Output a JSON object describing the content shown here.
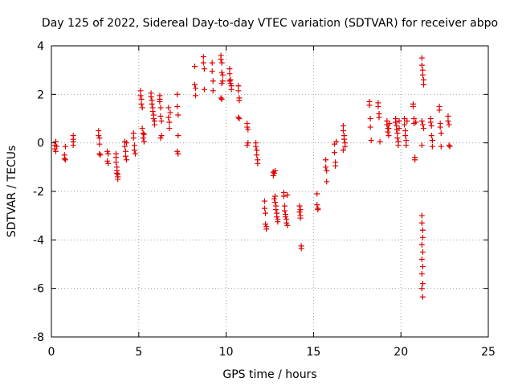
{
  "chart_data": {
    "type": "scatter",
    "title": "Day 125 of 2022, Sidereal Day-to-day VTEC variation (SDTVAR) for receiver abpo",
    "xlabel": "GPS time / hours",
    "ylabel": "SDTVAR / TECUs",
    "xlim": [
      0,
      25
    ],
    "ylim": [
      -8,
      4
    ],
    "xticks": [
      0,
      5,
      10,
      15,
      20,
      25
    ],
    "yticks": [
      -8,
      -6,
      -4,
      -2,
      0,
      2,
      4
    ],
    "xtick_labels": [
      "0",
      "5",
      "10",
      "15",
      "20",
      "25"
    ],
    "ytick_labels": [
      "-8",
      "-6",
      "-4",
      "-2",
      "0",
      "2",
      "4"
    ],
    "grid": true,
    "marker": "+",
    "color": "#e00000",
    "series": [
      {
        "name": "SDTVAR",
        "points": [
          [
            0.2,
            -0.1
          ],
          [
            0.2,
            -0.25
          ],
          [
            0.25,
            0.05
          ],
          [
            0.25,
            -0.35
          ],
          [
            0.3,
            -0.15
          ],
          [
            0.75,
            -0.5
          ],
          [
            0.75,
            -0.65
          ],
          [
            0.8,
            -0.7
          ],
          [
            0.8,
            -0.15
          ],
          [
            1.25,
            0.3
          ],
          [
            1.25,
            0.15
          ],
          [
            1.25,
            0.05
          ],
          [
            1.25,
            -0.1
          ],
          [
            2.7,
            0.5
          ],
          [
            2.7,
            0.3
          ],
          [
            2.75,
            0.2
          ],
          [
            2.75,
            -0.05
          ],
          [
            2.75,
            -0.45
          ],
          [
            2.8,
            -0.5
          ],
          [
            3.2,
            -0.35
          ],
          [
            3.2,
            -0.75
          ],
          [
            3.25,
            -0.85
          ],
          [
            3.25,
            -0.45
          ],
          [
            3.7,
            -0.45
          ],
          [
            3.7,
            -0.6
          ],
          [
            3.7,
            -0.8
          ],
          [
            3.75,
            -1.0
          ],
          [
            3.75,
            -1.15
          ],
          [
            3.75,
            -1.25
          ],
          [
            3.8,
            -1.3
          ],
          [
            3.8,
            -1.4
          ],
          [
            3.8,
            -1.5
          ],
          [
            4.2,
            0.05
          ],
          [
            4.2,
            -0.15
          ],
          [
            4.25,
            -0.35
          ],
          [
            4.25,
            -0.55
          ],
          [
            4.3,
            -0.7
          ],
          [
            4.3,
            0.0
          ],
          [
            4.7,
            0.4
          ],
          [
            4.7,
            0.2
          ],
          [
            4.75,
            -0.1
          ],
          [
            4.75,
            -0.3
          ],
          [
            4.8,
            -0.45
          ],
          [
            5.1,
            2.15
          ],
          [
            5.1,
            1.95
          ],
          [
            5.15,
            1.8
          ],
          [
            5.15,
            1.6
          ],
          [
            5.2,
            1.45
          ],
          [
            5.2,
            0.6
          ],
          [
            5.25,
            0.4
          ],
          [
            5.25,
            0.2
          ],
          [
            5.3,
            0.05
          ],
          [
            5.3,
            0.35
          ],
          [
            5.7,
            2.05
          ],
          [
            5.7,
            1.9
          ],
          [
            5.75,
            1.75
          ],
          [
            5.75,
            1.6
          ],
          [
            5.8,
            1.45
          ],
          [
            5.8,
            1.3
          ],
          [
            5.85,
            1.15
          ],
          [
            5.85,
            1.0
          ],
          [
            5.9,
            0.9
          ],
          [
            5.9,
            0.75
          ],
          [
            6.2,
            1.95
          ],
          [
            6.2,
            1.7
          ],
          [
            6.25,
            1.45
          ],
          [
            6.25,
            1.1
          ],
          [
            6.3,
            0.9
          ],
          [
            6.3,
            0.3
          ],
          [
            6.25,
            0.2
          ],
          [
            6.2,
            1.8
          ],
          [
            6.7,
            1.45
          ],
          [
            6.7,
            1.05
          ],
          [
            6.75,
            0.85
          ],
          [
            6.75,
            0.6
          ],
          [
            6.8,
            1.25
          ],
          [
            7.2,
            2.0
          ],
          [
            7.2,
            1.5
          ],
          [
            7.25,
            1.15
          ],
          [
            7.25,
            0.3
          ],
          [
            7.2,
            -0.35
          ],
          [
            7.25,
            -0.45
          ],
          [
            8.2,
            3.15
          ],
          [
            8.2,
            2.4
          ],
          [
            8.25,
            2.25
          ],
          [
            8.25,
            1.95
          ],
          [
            8.7,
            3.55
          ],
          [
            8.7,
            3.3
          ],
          [
            8.75,
            3.05
          ],
          [
            8.75,
            2.2
          ],
          [
            9.2,
            3.3
          ],
          [
            9.2,
            2.95
          ],
          [
            9.25,
            2.55
          ],
          [
            9.25,
            2.15
          ],
          [
            9.7,
            3.6
          ],
          [
            9.7,
            3.45
          ],
          [
            9.75,
            3.3
          ],
          [
            9.75,
            2.9
          ],
          [
            9.8,
            2.8
          ],
          [
            9.8,
            2.55
          ],
          [
            9.75,
            2.45
          ],
          [
            9.7,
            1.85
          ],
          [
            9.75,
            1.8
          ],
          [
            10.2,
            3.05
          ],
          [
            10.2,
            2.85
          ],
          [
            10.25,
            2.6
          ],
          [
            10.25,
            2.45
          ],
          [
            10.3,
            2.35
          ],
          [
            10.3,
            2.2
          ],
          [
            10.2,
            2.55
          ],
          [
            10.7,
            2.35
          ],
          [
            10.7,
            2.15
          ],
          [
            10.75,
            1.85
          ],
          [
            10.75,
            1.75
          ],
          [
            10.7,
            1.05
          ],
          [
            10.75,
            1.0
          ],
          [
            11.2,
            0.8
          ],
          [
            11.2,
            0.65
          ],
          [
            11.25,
            0.55
          ],
          [
            11.25,
            0.0
          ],
          [
            11.2,
            -0.1
          ],
          [
            11.7,
            0.0
          ],
          [
            11.7,
            -0.15
          ],
          [
            11.75,
            -0.3
          ],
          [
            11.75,
            -0.5
          ],
          [
            11.8,
            -0.7
          ],
          [
            11.8,
            -0.85
          ],
          [
            12.2,
            -2.4
          ],
          [
            12.2,
            -2.7
          ],
          [
            12.25,
            -2.9
          ],
          [
            12.25,
            -3.35
          ],
          [
            12.3,
            -3.45
          ],
          [
            12.3,
            -3.55
          ],
          [
            12.7,
            -1.2
          ],
          [
            12.7,
            -1.35
          ],
          [
            12.75,
            -1.25
          ],
          [
            12.8,
            -1.15
          ],
          [
            12.75,
            -2.3
          ],
          [
            12.8,
            -2.45
          ],
          [
            12.85,
            -2.6
          ],
          [
            12.85,
            -2.75
          ],
          [
            12.9,
            -2.9
          ],
          [
            12.9,
            -3.05
          ],
          [
            12.95,
            -3.15
          ],
          [
            12.95,
            -3.25
          ],
          [
            12.8,
            -2.2
          ],
          [
            13.3,
            -2.05
          ],
          [
            13.3,
            -2.2
          ],
          [
            13.35,
            -2.6
          ],
          [
            13.35,
            -2.8
          ],
          [
            13.4,
            -2.95
          ],
          [
            13.4,
            -3.05
          ],
          [
            13.45,
            -3.15
          ],
          [
            13.45,
            -3.3
          ],
          [
            13.5,
            -2.15
          ],
          [
            13.5,
            -3.4
          ],
          [
            14.2,
            -2.6
          ],
          [
            14.2,
            -2.85
          ],
          [
            14.25,
            -3.0
          ],
          [
            14.25,
            -3.1
          ],
          [
            14.3,
            -4.25
          ],
          [
            14.3,
            -4.35
          ],
          [
            14.25,
            -2.75
          ],
          [
            15.2,
            -2.1
          ],
          [
            15.2,
            -2.55
          ],
          [
            15.25,
            -2.7
          ],
          [
            15.25,
            -2.75
          ],
          [
            15.7,
            -0.7
          ],
          [
            15.7,
            -1.0
          ],
          [
            15.75,
            -1.15
          ],
          [
            15.75,
            -1.6
          ],
          [
            16.2,
            -0.05
          ],
          [
            16.2,
            -0.4
          ],
          [
            16.25,
            -0.8
          ],
          [
            16.25,
            -0.95
          ],
          [
            16.3,
            0.05
          ],
          [
            16.7,
            0.7
          ],
          [
            16.7,
            0.5
          ],
          [
            16.75,
            0.3
          ],
          [
            16.75,
            0.15
          ],
          [
            16.8,
            0.0
          ],
          [
            16.8,
            -0.15
          ],
          [
            16.7,
            -0.3
          ],
          [
            18.2,
            1.7
          ],
          [
            18.2,
            1.55
          ],
          [
            18.25,
            1.0
          ],
          [
            18.25,
            0.65
          ],
          [
            18.3,
            0.1
          ],
          [
            18.7,
            1.65
          ],
          [
            18.7,
            1.5
          ],
          [
            18.75,
            1.2
          ],
          [
            18.75,
            1.05
          ],
          [
            18.8,
            0.05
          ],
          [
            19.2,
            0.9
          ],
          [
            19.2,
            0.75
          ],
          [
            19.25,
            0.6
          ],
          [
            19.25,
            0.45
          ],
          [
            19.3,
            0.3
          ],
          [
            19.3,
            0.6
          ],
          [
            19.35,
            0.8
          ],
          [
            19.7,
            1.0
          ],
          [
            19.7,
            0.85
          ],
          [
            19.75,
            0.7
          ],
          [
            19.75,
            0.55
          ],
          [
            19.8,
            0.4
          ],
          [
            19.8,
            0.2
          ],
          [
            19.85,
            0.05
          ],
          [
            19.85,
            -0.1
          ],
          [
            19.9,
            0.9
          ],
          [
            19.9,
            0.6
          ],
          [
            20.2,
            1.0
          ],
          [
            20.2,
            0.75
          ],
          [
            20.25,
            0.5
          ],
          [
            20.25,
            0.3
          ],
          [
            20.3,
            0.1
          ],
          [
            20.3,
            -0.1
          ],
          [
            20.35,
            0.9
          ],
          [
            20.7,
            1.6
          ],
          [
            20.7,
            1.5
          ],
          [
            20.75,
            1.0
          ],
          [
            20.75,
            0.8
          ],
          [
            20.8,
            -0.6
          ],
          [
            20.8,
            -0.7
          ],
          [
            20.85,
            0.85
          ],
          [
            21.2,
            3.5
          ],
          [
            21.2,
            3.2
          ],
          [
            21.25,
            3.0
          ],
          [
            21.25,
            2.8
          ],
          [
            21.3,
            2.6
          ],
          [
            21.3,
            2.4
          ],
          [
            21.2,
            0.9
          ],
          [
            21.25,
            0.75
          ],
          [
            21.3,
            0.6
          ],
          [
            21.2,
            -0.1
          ],
          [
            21.2,
            -3.0
          ],
          [
            21.2,
            -3.3
          ],
          [
            21.25,
            -3.6
          ],
          [
            21.25,
            -3.9
          ],
          [
            21.2,
            -4.2
          ],
          [
            21.25,
            -4.5
          ],
          [
            21.2,
            -4.8
          ],
          [
            21.25,
            -5.1
          ],
          [
            21.2,
            -5.4
          ],
          [
            21.25,
            -5.8
          ],
          [
            21.2,
            -6.0
          ],
          [
            21.25,
            -6.35
          ],
          [
            21.7,
            1.0
          ],
          [
            21.7,
            0.85
          ],
          [
            21.75,
            0.7
          ],
          [
            21.75,
            0.3
          ],
          [
            21.8,
            0.1
          ],
          [
            21.8,
            -0.15
          ],
          [
            22.2,
            1.5
          ],
          [
            22.2,
            1.35
          ],
          [
            22.25,
            0.8
          ],
          [
            22.25,
            0.65
          ],
          [
            22.3,
            0.4
          ],
          [
            22.3,
            -0.15
          ],
          [
            22.7,
            1.1
          ],
          [
            22.7,
            0.9
          ],
          [
            22.75,
            0.75
          ],
          [
            22.75,
            -0.1
          ],
          [
            22.8,
            -0.15
          ]
        ]
      }
    ]
  }
}
